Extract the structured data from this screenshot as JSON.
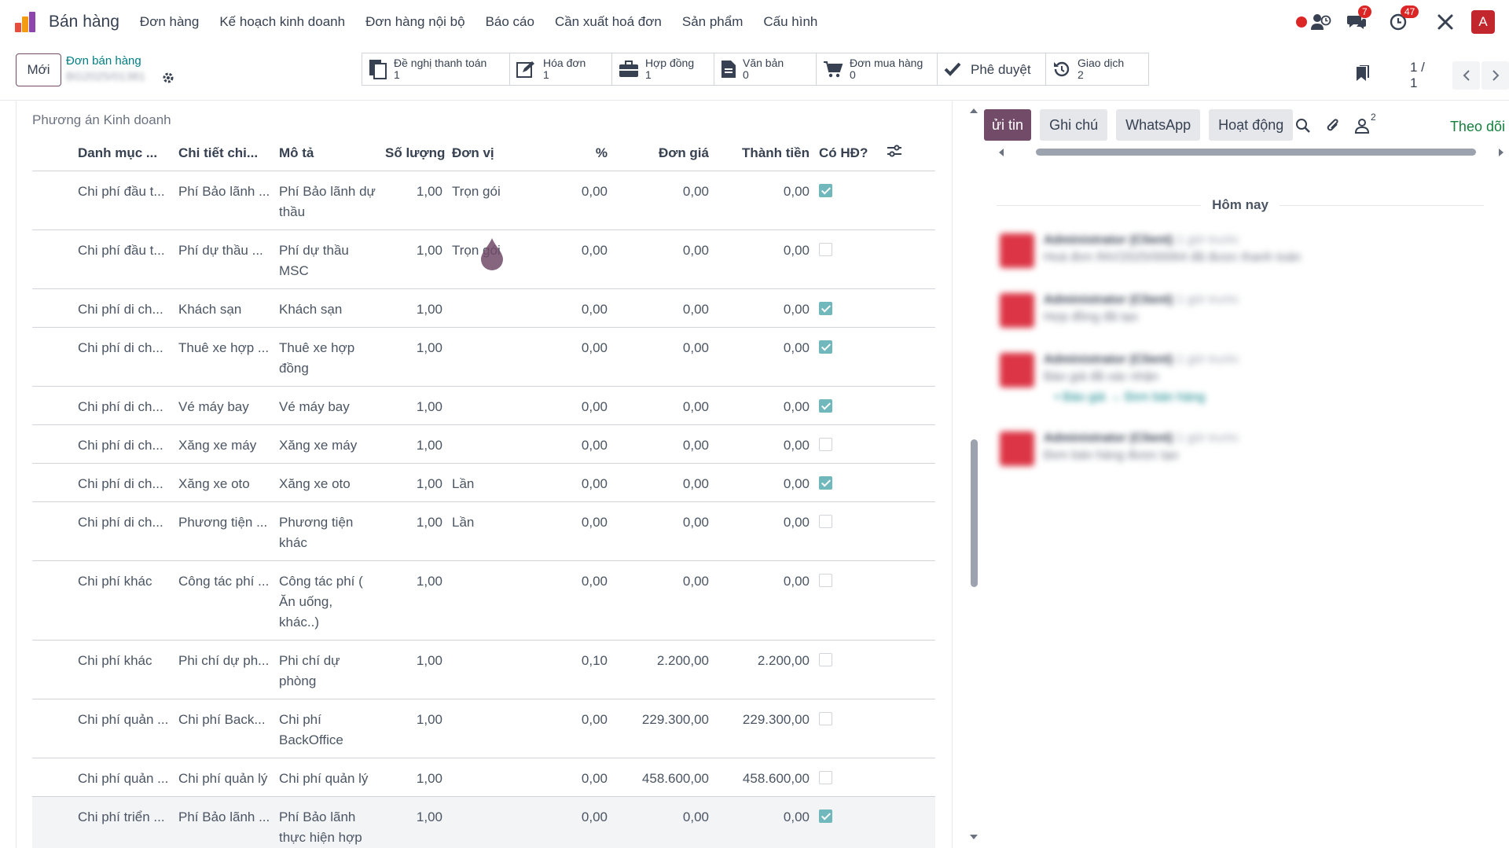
{
  "app": {
    "title": "Bán hàng",
    "menu": [
      "Đơn hàng",
      "Kế hoạch kinh doanh",
      "Đơn hàng nội bộ",
      "Báo cáo",
      "Cần xuất hoá đơn",
      "Sản phẩm",
      "Cấu hình"
    ],
    "badges": {
      "messages": "7",
      "activities": "47"
    },
    "avatar_letter": "A"
  },
  "control": {
    "new_label": "Mới",
    "breadcrumb_parent": "Đơn bán hàng",
    "breadcrumb_current": "BG2025/01381",
    "pager": "1 / 1"
  },
  "smart_buttons": [
    {
      "label": "Đề nghị thanh toán",
      "count": "1",
      "icon": "payment-request-icon"
    },
    {
      "label": "Hóa đơn",
      "count": "1",
      "icon": "invoice-edit-icon"
    },
    {
      "label": "Hợp đồng",
      "count": "1",
      "icon": "briefcase-icon"
    },
    {
      "label": "Văn bản",
      "count": "0",
      "icon": "document-icon"
    },
    {
      "label": "Đơn mua hàng",
      "count": "0",
      "icon": "cart-icon"
    },
    {
      "label": "Phê duyệt",
      "count": "",
      "icon": "check-icon"
    },
    {
      "label": "Giao dịch",
      "count": "2",
      "icon": "history-icon"
    }
  ],
  "section": {
    "title": "Phương án Kinh doanh"
  },
  "table": {
    "headers": [
      "Danh mục ...",
      "Chi tiết chi...",
      "Mô tả",
      "Số lượng",
      "Đơn vị",
      "%",
      "Đơn giá",
      "Thành tiền",
      "Có HĐ?"
    ],
    "rows": [
      {
        "cat": "Chi phí đầu t...",
        "detail": "Phí Bảo lãnh ...",
        "desc": "Phí Bảo lãnh dự thầu",
        "qty": "1,00",
        "unit": "Trọn gói",
        "pct": "0,00",
        "price": "0,00",
        "total": "0,00",
        "has": true
      },
      {
        "cat": "Chi phí đầu t...",
        "detail": "Phí dự thầu ...",
        "desc": "Phí dự thầu MSC",
        "qty": "1,00",
        "unit": "Trọn gói",
        "pct": "0,00",
        "price": "0,00",
        "total": "0,00",
        "has": false
      },
      {
        "cat": "Chi phí di ch...",
        "detail": "Khách sạn",
        "desc": "Khách sạn",
        "qty": "1,00",
        "unit": "",
        "pct": "0,00",
        "price": "0,00",
        "total": "0,00",
        "has": true
      },
      {
        "cat": "Chi phí di ch...",
        "detail": "Thuê xe hợp ...",
        "desc": "Thuê xe hợp đồng",
        "qty": "1,00",
        "unit": "",
        "pct": "0,00",
        "price": "0,00",
        "total": "0,00",
        "has": true
      },
      {
        "cat": "Chi phí di ch...",
        "detail": "Vé máy bay",
        "desc": "Vé máy bay",
        "qty": "1,00",
        "unit": "",
        "pct": "0,00",
        "price": "0,00",
        "total": "0,00",
        "has": true
      },
      {
        "cat": "Chi phí di ch...",
        "detail": "Xăng xe máy",
        "desc": "Xăng xe máy",
        "qty": "1,00",
        "unit": "",
        "pct": "0,00",
        "price": "0,00",
        "total": "0,00",
        "has": false
      },
      {
        "cat": "Chi phí di ch...",
        "detail": "Xăng xe oto",
        "desc": "Xăng xe oto",
        "qty": "1,00",
        "unit": "Lần",
        "pct": "0,00",
        "price": "0,00",
        "total": "0,00",
        "has": true
      },
      {
        "cat": "Chi phí di ch...",
        "detail": "Phương tiện ...",
        "desc": "Phương tiện khác",
        "qty": "1,00",
        "unit": "Lần",
        "pct": "0,00",
        "price": "0,00",
        "total": "0,00",
        "has": false
      },
      {
        "cat": "Chi phí khác",
        "detail": "Công tác phí ...",
        "desc": "Công tác phí ( Ăn uống, khác..)",
        "qty": "1,00",
        "unit": "",
        "pct": "0,00",
        "price": "0,00",
        "total": "0,00",
        "has": false
      },
      {
        "cat": "Chi phí khác",
        "detail": "Phi chí dự ph...",
        "desc": "Phi chí dự phòng",
        "qty": "1,00",
        "unit": "",
        "pct": "0,10",
        "price": "2.200,00",
        "total": "2.200,00",
        "has": false
      },
      {
        "cat": "Chi phí quản ...",
        "detail": "Chi phí Back...",
        "desc": "Chi phí BackOffice",
        "qty": "1,00",
        "unit": "",
        "pct": "0,00",
        "price": "229.300,00",
        "total": "229.300,00",
        "has": false
      },
      {
        "cat": "Chi phí quản ...",
        "detail": "Chi phí quản lý",
        "desc": "Chi phí quản lý",
        "qty": "1,00",
        "unit": "",
        "pct": "0,00",
        "price": "458.600,00",
        "total": "458.600,00",
        "has": false
      },
      {
        "cat": "Chi phí triển ...",
        "detail": "Phí Bảo lãnh ...",
        "desc": "Phí Bảo lãnh thực hiện hợp đồng",
        "qty": "1,00",
        "unit": "",
        "pct": "0,00",
        "price": "0,00",
        "total": "0,00",
        "has": true
      }
    ]
  },
  "chatter": {
    "tabs": [
      "ửi tin",
      "Ghi chú",
      "WhatsApp",
      "Hoạt động"
    ],
    "followers_count": "2",
    "follow_label": "Theo dõi",
    "today_label": "Hôm nay",
    "messages": [
      {
        "author": "Administrator (Client)",
        "time": "1 giờ trước",
        "body": "Hoá đơn INV/2025/00064 đã được thanh toán"
      },
      {
        "author": "Administrator (Client)",
        "time": "1 giờ trước",
        "body": "Hợp đồng đã tạo"
      },
      {
        "author": "Administrator (Client)",
        "time": "1 giờ trước",
        "body": "Báo giá đã xác nhận"
      },
      {
        "author": "Administrator (Client)",
        "time": "1 giờ trước",
        "body": "Đơn bán hàng được tạo"
      }
    ]
  }
}
